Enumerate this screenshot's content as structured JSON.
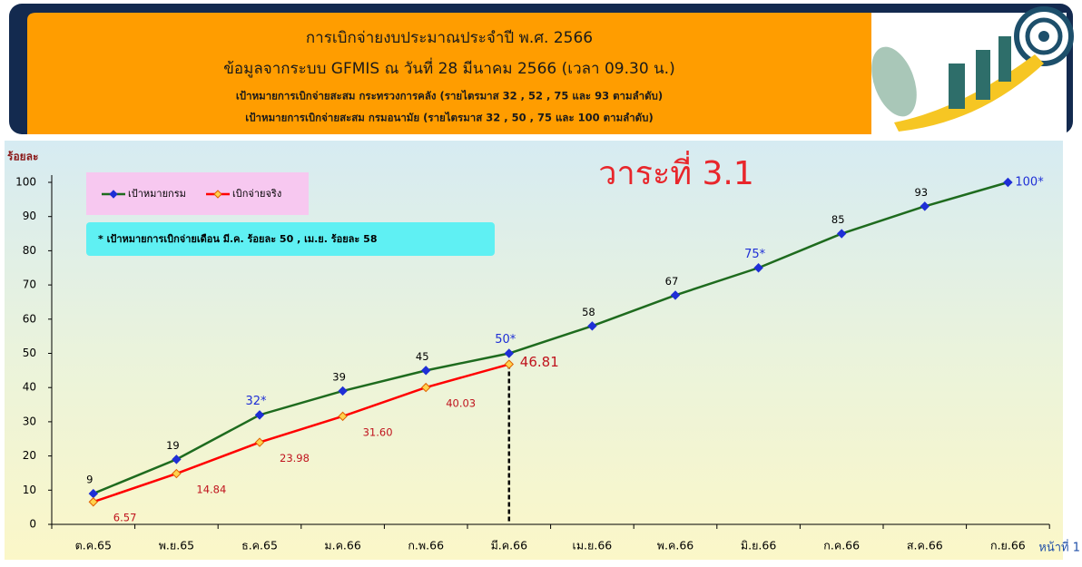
{
  "header": {
    "title": "การเบิกจ่ายงบประมาณประจำปี พ.ศ. 2566",
    "subtitle": "ข้อมูลจากระบบ GFMIS  ณ  วันที่ 28 มีนาคม 2566 (เวลา 09.30 น.)",
    "note_1": "เป้าหมายการเบิกจ่ายสะสม กระทรวงการคลัง (รายไตรมาส  32 , 52 , 75 และ 93 ตามลำดับ)",
    "note_2": "เป้าหมายการเบิกจ่ายสะสม กรมอนามัย (รายไตรมาส  32 , 50 , 75 และ 100 ตามลำดับ)"
  },
  "chart_data": {
    "type": "line",
    "title": "วาระที่ 3.1",
    "y_label": "ร้อยละ",
    "annotation": "* เป้าหมายการเบิกจ่ายเดือน  มี.ค.  ร้อยละ 50 , เม.ย.  ร้อยละ  58",
    "page_label": "หน้าที่ 1",
    "categories": [
      "ต.ค.65",
      "พ.ย.65",
      "ธ.ค.65",
      "ม.ค.66",
      "ก.พ.66",
      "มี.ค.66",
      "เม.ย.66",
      "พ.ค.66",
      "มิ.ย.66",
      "ก.ค.66",
      "ส.ค.66",
      "ก.ย.66"
    ],
    "series": [
      {
        "name": "เป้าหมายกรม",
        "color": "#1e6b1e",
        "marker_color": "#1f2fd6",
        "values": [
          9,
          19,
          32,
          39,
          45,
          50,
          58,
          67,
          75,
          85,
          93,
          100
        ],
        "value_labels": [
          "9",
          "19",
          "32*",
          "39",
          "45",
          "50*",
          "58",
          "67",
          "75*",
          "85",
          "93",
          "100*"
        ]
      },
      {
        "name": "เบิกจ่ายจริง",
        "color": "#ff0000",
        "marker_color": "#ffd24d",
        "values": [
          6.57,
          14.84,
          23.98,
          31.6,
          40.03,
          46.81,
          null,
          null,
          null,
          null,
          null,
          null
        ],
        "value_labels": [
          "6.57",
          "14.84",
          "23.98",
          "31.60",
          "40.03",
          "46.81",
          null,
          null,
          null,
          null,
          null,
          null
        ]
      }
    ],
    "ylim": [
      0,
      100
    ],
    "yticks": [
      0,
      10,
      20,
      30,
      40,
      50,
      60,
      70,
      80,
      90,
      100
    ],
    "grid": false
  }
}
